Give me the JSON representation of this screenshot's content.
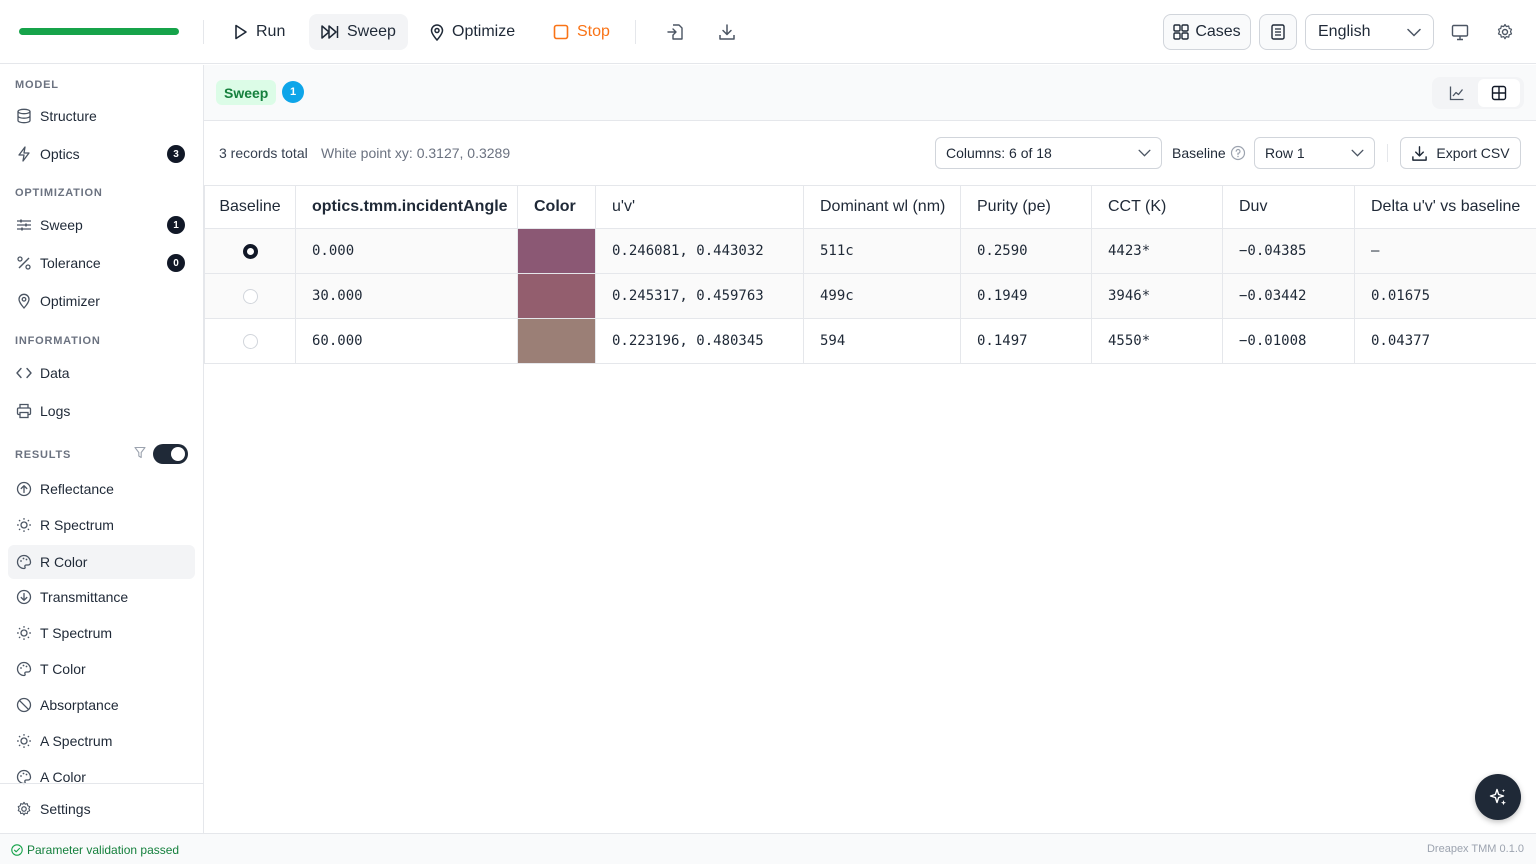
{
  "toolbar": {
    "progress": 1.0,
    "run": "Run",
    "sweep": "Sweep",
    "optimize": "Optimize",
    "stop": "Stop",
    "cases": "Cases",
    "language": "English"
  },
  "sidebar": {
    "model_heading": "MODEL",
    "structure": "Structure",
    "optics": "Optics",
    "optics_count": "3",
    "optimization_heading": "OPTIMIZATION",
    "sweep": "Sweep",
    "sweep_count": "1",
    "tolerance": "Tolerance",
    "tolerance_count": "0",
    "optimizer": "Optimizer",
    "information_heading": "INFORMATION",
    "data": "Data",
    "logs": "Logs",
    "results_heading": "RESULTS",
    "results_toggle_on": true,
    "results": [
      "Reflectance",
      "R Spectrum",
      "R Color",
      "Transmittance",
      "T Spectrum",
      "T Color",
      "Absorptance",
      "A Spectrum",
      "A Color"
    ],
    "selected_result": "R Color",
    "settings": "Settings"
  },
  "subhead": {
    "mode": "Sweep",
    "count": "1"
  },
  "controls": {
    "records_total": "3 records total",
    "white_point": "White point xy: 0.3127, 0.3289",
    "columns": "Columns: 6 of 18",
    "baseline_label": "Baseline",
    "baseline_value": "Row 1",
    "export": "Export CSV"
  },
  "table": {
    "headers": [
      "Baseline",
      "optics.tmm.incidentAngle",
      "Color",
      "u'v'",
      "Dominant wl (nm)",
      "Purity (pe)",
      "CCT (K)",
      "Duv",
      "Delta u'v' vs baseline"
    ],
    "rows": [
      {
        "baseline": true,
        "angle": "0.000",
        "color": "#8b5874",
        "uv": "0.246081, 0.443032",
        "dominant": "511c",
        "purity": "0.2590",
        "cct": "4423*",
        "duv": "−0.04385",
        "delta": "—"
      },
      {
        "baseline": false,
        "angle": "30.000",
        "color": "#935e6e",
        "uv": "0.245317, 0.459763",
        "dominant": "499c",
        "purity": "0.1949",
        "cct": "3946*",
        "duv": "−0.03442",
        "delta": "0.01675"
      },
      {
        "baseline": false,
        "angle": "60.000",
        "color": "#9b7f76",
        "uv": "0.223196, 0.480345",
        "dominant": "594",
        "purity": "0.1497",
        "cct": "4550*",
        "duv": "−0.01008",
        "delta": "0.04377"
      }
    ]
  },
  "status": {
    "message": "Parameter validation passed",
    "version": "Dreapex TMM 0.1.0"
  },
  "colors": {
    "accent_green": "#16a34a",
    "stop_orange": "#f97316",
    "badge_blue": "#0ea5e9"
  }
}
